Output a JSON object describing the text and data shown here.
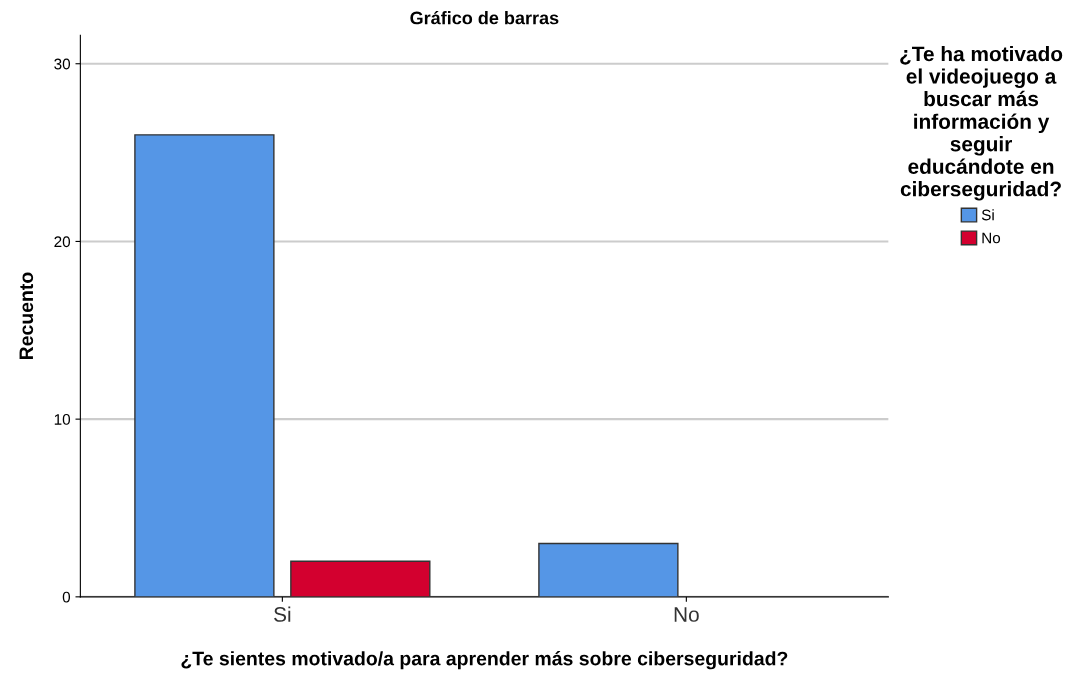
{
  "chart_data": {
    "type": "bar",
    "title": "Gráfico de barras",
    "xlabel": "¿Te sientes motivado/a para aprender más sobre ciberseguridad?",
    "ylabel": "Recuento",
    "legend_title": "¿Te ha motivado\nel videojuego a\nbuscar más\ninformación y\nseguir\neducándote en\nciberseguridad?",
    "categories": [
      "Si",
      "No"
    ],
    "series": [
      {
        "name": "Si",
        "color": "#5596e6",
        "values": [
          26,
          3
        ]
      },
      {
        "name": "No",
        "color": "#d3002f",
        "values": [
          2,
          null
        ]
      }
    ],
    "ylim": [
      0,
      31.6
    ],
    "yticks": [
      0,
      10,
      20,
      30
    ],
    "grid": "y",
    "legend": "right"
  }
}
